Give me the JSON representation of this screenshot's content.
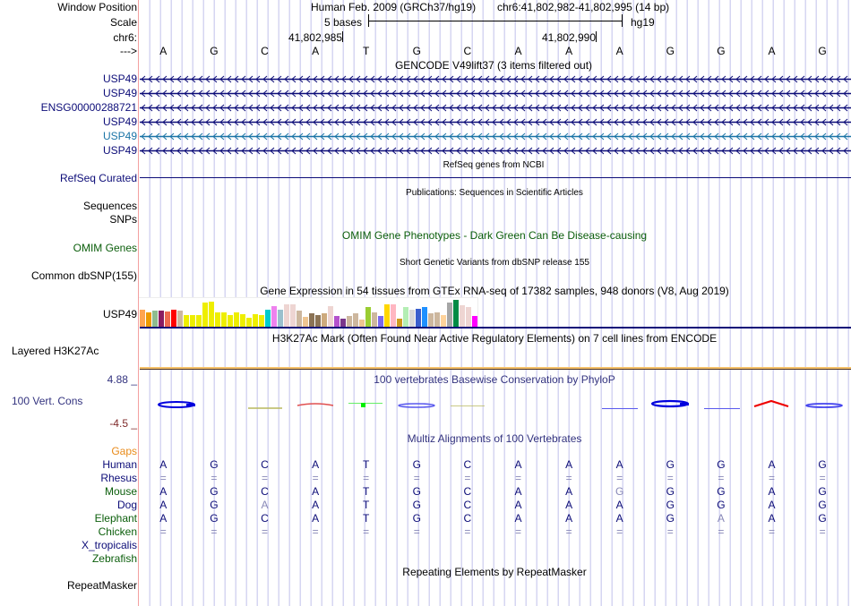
{
  "header": {
    "window_position_label": "Window Position",
    "scale_label": "Scale",
    "chrom_label": "chr6:",
    "strand_label": "--->",
    "assembly": "Human Feb. 2009 (GRCh37/hg19)",
    "position": "chr6:41,802,982-41,802,995 (14 bp)",
    "scale_text": "5 bases",
    "scale_db": "hg19",
    "tick_left": "41,802,985",
    "tick_right": "41,802,990"
  },
  "sequence": [
    "A",
    "G",
    "C",
    "A",
    "T",
    "G",
    "C",
    "A",
    "A",
    "A",
    "G",
    "G",
    "A",
    "G"
  ],
  "gencode": {
    "title": "GENCODE V49lift37 (3 items filtered out)",
    "items": [
      {
        "label": "USP49",
        "color": "#0c0c78"
      },
      {
        "label": "USP49",
        "color": "#0c0c78"
      },
      {
        "label": "ENSG00000288721",
        "color": "#0c0c78"
      },
      {
        "label": "USP49",
        "color": "#0c0c78"
      },
      {
        "label": "USP49",
        "color": "#1a74a6"
      },
      {
        "label": "USP49",
        "color": "#0c0c78"
      }
    ]
  },
  "refseq": {
    "title": "RefSeq genes from NCBI",
    "label": "RefSeq Curated"
  },
  "publications": {
    "title": "Publications: Sequences in Scientific Articles",
    "label_1": "Sequences",
    "label_2": "SNPs"
  },
  "omim": {
    "title": "OMIM Gene Phenotypes - Dark Green Can Be Disease-causing",
    "label": "OMIM Genes"
  },
  "dbsnp": {
    "title": "Short Genetic Variants from dbSNP release 155",
    "label": "Common dbSNP(155)"
  },
  "gtex": {
    "title": "Gene Expression in 54 tissues from GTEx RNA-seq of 17382 samples, 948 donors (V8, Aug 2019)",
    "label": "USP49",
    "bars": [
      {
        "v": 0.63,
        "c": "#ffa54f"
      },
      {
        "v": 0.53,
        "c": "#ee9a00"
      },
      {
        "v": 0.6,
        "c": "#8fbc8f"
      },
      {
        "v": 0.6,
        "c": "#8b1c62"
      },
      {
        "v": 0.57,
        "c": "#ee6a50"
      },
      {
        "v": 0.65,
        "c": "#ff0000"
      },
      {
        "v": 0.6,
        "c": "#cdb79e"
      },
      {
        "v": 0.42,
        "c": "#eeee00"
      },
      {
        "v": 0.45,
        "c": "#eeee00"
      },
      {
        "v": 0.42,
        "c": "#eeee00"
      },
      {
        "v": 0.9,
        "c": "#eeee00"
      },
      {
        "v": 0.95,
        "c": "#eeee00"
      },
      {
        "v": 0.55,
        "c": "#eeee00"
      },
      {
        "v": 0.52,
        "c": "#eeee00"
      },
      {
        "v": 0.45,
        "c": "#eeee00"
      },
      {
        "v": 0.52,
        "c": "#eeee00"
      },
      {
        "v": 0.48,
        "c": "#eeee00"
      },
      {
        "v": 0.35,
        "c": "#eeee00"
      },
      {
        "v": 0.48,
        "c": "#eeee00"
      },
      {
        "v": 0.42,
        "c": "#eeee00"
      },
      {
        "v": 0.65,
        "c": "#00cdcd"
      },
      {
        "v": 0.78,
        "c": "#ee82ee"
      },
      {
        "v": 0.65,
        "c": "#9ac0cd"
      },
      {
        "v": 0.85,
        "c": "#eed5d2"
      },
      {
        "v": 0.85,
        "c": "#eed5d2"
      },
      {
        "v": 0.6,
        "c": "#cdb79e"
      },
      {
        "v": 0.38,
        "c": "#eec591"
      },
      {
        "v": 0.5,
        "c": "#8b7355"
      },
      {
        "v": 0.42,
        "c": "#8b7355"
      },
      {
        "v": 0.5,
        "c": "#cdaa7d"
      },
      {
        "v": 0.78,
        "c": "#eed5d2"
      },
      {
        "v": 0.4,
        "c": "#b452cd"
      },
      {
        "v": 0.3,
        "c": "#7a378b"
      },
      {
        "v": 0.4,
        "c": "#cdb79e"
      },
      {
        "v": 0.5,
        "c": "#cdb79e"
      },
      {
        "v": 0.28,
        "c": "#eec591"
      },
      {
        "v": 0.75,
        "c": "#9acd32"
      },
      {
        "v": 0.55,
        "c": "#cdb79e"
      },
      {
        "v": 0.4,
        "c": "#7b68ee"
      },
      {
        "v": 0.85,
        "c": "#ffd700"
      },
      {
        "v": 0.82,
        "c": "#ffb6c1"
      },
      {
        "v": 0.3,
        "c": "#cd9b1d"
      },
      {
        "v": 0.72,
        "c": "#b4eeb4"
      },
      {
        "v": 0.65,
        "c": "#d9d9d9"
      },
      {
        "v": 0.68,
        "c": "#3a5fcd"
      },
      {
        "v": 0.72,
        "c": "#1e90ff"
      },
      {
        "v": 0.5,
        "c": "#cdb79e"
      },
      {
        "v": 0.52,
        "c": "#cdb79e"
      },
      {
        "v": 0.45,
        "c": "#ffd39b"
      },
      {
        "v": 0.9,
        "c": "#a6a6a6"
      },
      {
        "v": 1.0,
        "c": "#008b45"
      },
      {
        "v": 0.8,
        "c": "#eed5d2"
      },
      {
        "v": 0.72,
        "c": "#eed5d2"
      },
      {
        "v": 0.4,
        "c": "#ff00ff"
      }
    ]
  },
  "h3k27ac": {
    "title": "H3K27Ac Mark (Often Found Near Active Regulatory Elements) on 7 cell lines from ENCODE",
    "label": "Layered H3K27Ac"
  },
  "phylop": {
    "title": "100 vertebrates Basewise Conservation by PhyloP",
    "label": "100 Vert. Cons",
    "ymax": "4.88 _",
    "ymin": "-4.5 _"
  },
  "multiz": {
    "title": "Multiz Alignments of 100 Vertebrates",
    "gaps_label": "Gaps",
    "species": [
      {
        "name": "Human",
        "color": "#0c0c78",
        "bases": [
          "A",
          "G",
          "C",
          "A",
          "T",
          "G",
          "C",
          "A",
          "A",
          "A",
          "G",
          "G",
          "A",
          "G"
        ]
      },
      {
        "name": "Rhesus",
        "color": "#0c0c78",
        "bases": [
          "=",
          "=",
          "=",
          "=",
          "=",
          "=",
          "=",
          "=",
          "=",
          "=",
          "=",
          "=",
          "=",
          "="
        ]
      },
      {
        "name": "Mouse",
        "color": "#0b5e0b",
        "bases": [
          "A",
          "G",
          "C",
          "A",
          "T",
          "G",
          "C",
          "A",
          "A",
          "G",
          "G",
          "G",
          "A",
          "G"
        ]
      },
      {
        "name": "Dog",
        "color": "#0c0c78",
        "bases": [
          "A",
          "G",
          "A",
          "A",
          "T",
          "G",
          "C",
          "A",
          "A",
          "A",
          "G",
          "G",
          "A",
          "G"
        ]
      },
      {
        "name": "Elephant",
        "color": "#0b5e0b",
        "bases": [
          "A",
          "G",
          "C",
          "A",
          "T",
          "G",
          "C",
          "A",
          "A",
          "A",
          "G",
          "A",
          "A",
          "G"
        ]
      },
      {
        "name": "Chicken",
        "color": "#0b5e0b",
        "bases": [
          "=",
          "=",
          "=",
          "=",
          "=",
          "=",
          "=",
          "=",
          "=",
          "=",
          "=",
          "=",
          "=",
          "="
        ]
      },
      {
        "name": "X_tropicalis",
        "color": "#0c0c78",
        "bases": []
      },
      {
        "name": "Zebrafish",
        "color": "#0b5e0b",
        "bases": []
      }
    ],
    "mismatch": {
      "Mouse": [
        9
      ],
      "Dog": [
        2
      ],
      "Elephant": [
        11
      ]
    }
  },
  "repeatmasker": {
    "title": "Repeating Elements by RepeatMasker",
    "label": "RepeatMasker"
  }
}
